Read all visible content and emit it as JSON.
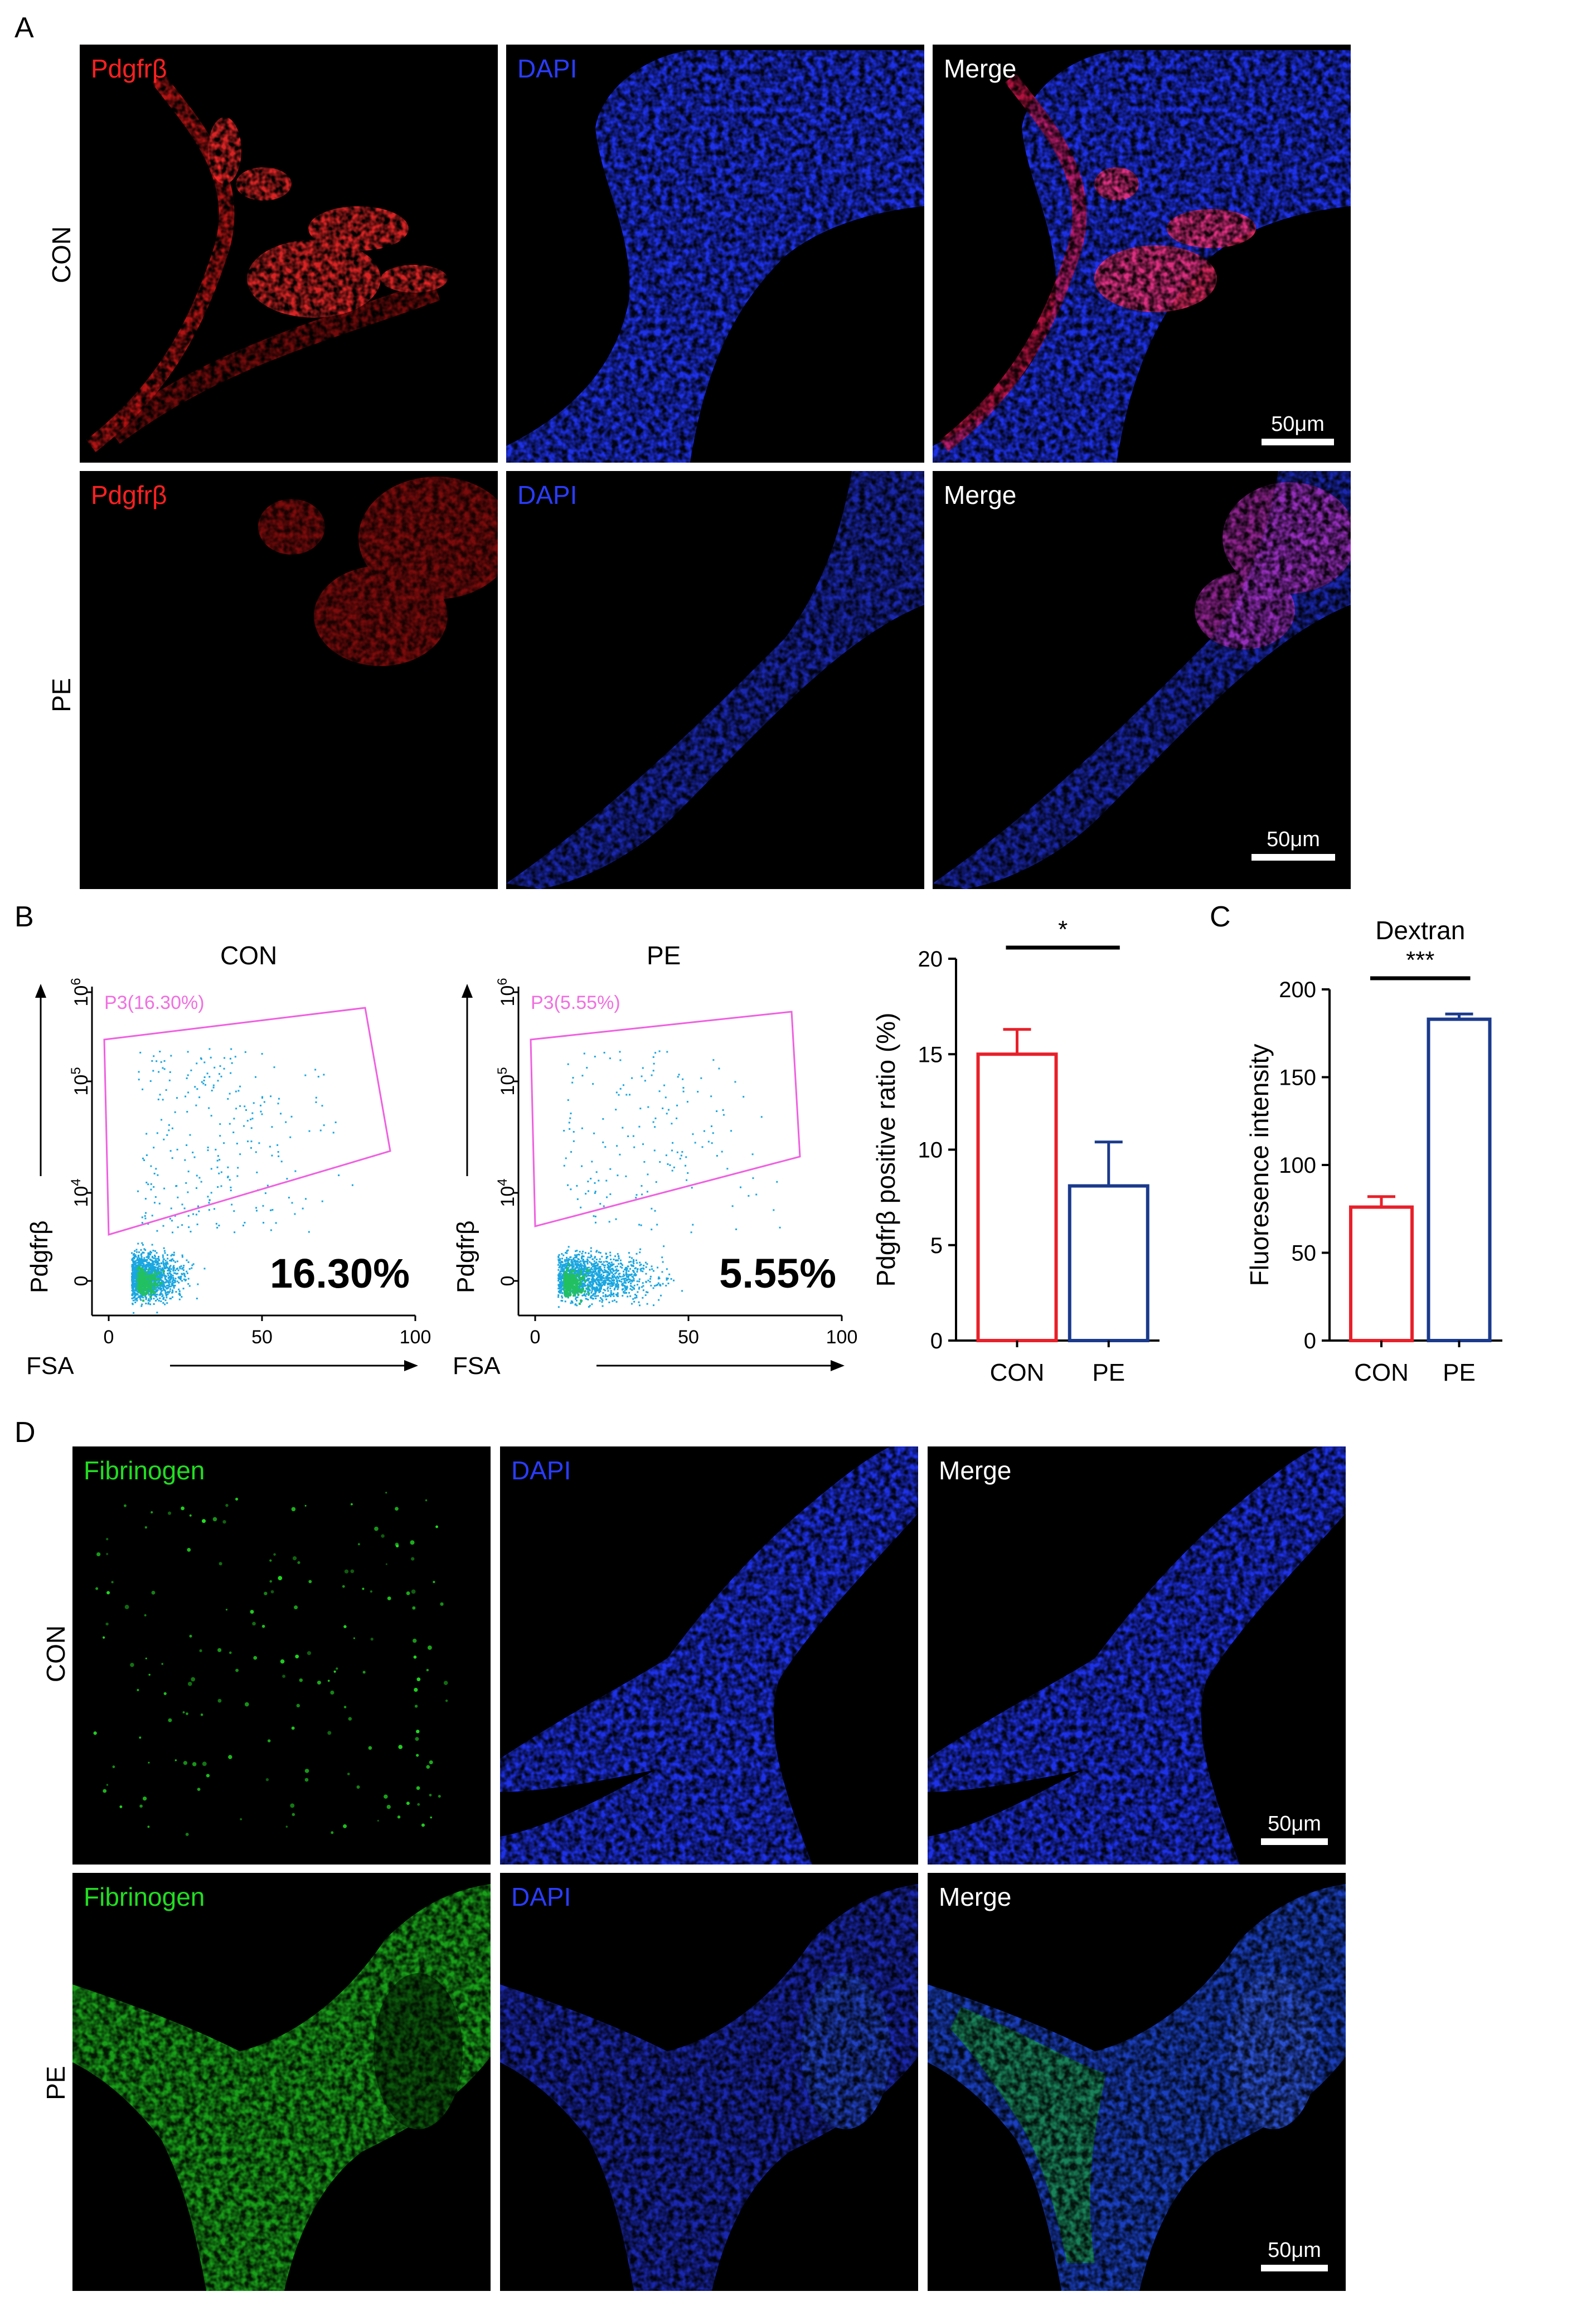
{
  "panels": {
    "a": {
      "letter": "A",
      "row1": "CON",
      "row2": "PE",
      "col1": "Pdgfrβ",
      "col2": "DAPI",
      "col3": "Merge",
      "scale": "50μm"
    },
    "b": {
      "letter": "B"
    },
    "c": {
      "letter": "C"
    },
    "d": {
      "letter": "D",
      "row1": "CON",
      "row2": "PE",
      "col1": "Fibrinogen",
      "col2": "DAPI",
      "col3": "Merge",
      "scale": "50μm"
    }
  },
  "colors": {
    "red": "#ff2020",
    "blue": "#2a3cff",
    "green": "#22dd22",
    "magenta": "#ff66ff",
    "bar_con": "#e8202a",
    "bar_pe": "#1a3a8c",
    "dots": "#1aa6e0"
  },
  "chart_data": [
    {
      "type": "scatter",
      "id": "flow-con",
      "title": "CON",
      "xlabel": "FSA",
      "ylabel": "Pdgfrβ",
      "xticks": [
        "0",
        "50",
        "100"
      ],
      "yticks": [
        "0",
        "10^4",
        "10^5",
        "10^6"
      ],
      "xlim": [
        0,
        100
      ],
      "gate_label": "P3(16.30%)",
      "percentage": "16.30%"
    },
    {
      "type": "scatter",
      "id": "flow-pe",
      "title": "PE",
      "xlabel": "FSA",
      "ylabel": "Pdgfrβ",
      "xticks": [
        "0",
        "50",
        "100"
      ],
      "yticks": [
        "0",
        "10^4",
        "10^5",
        "10^6"
      ],
      "xlim": [
        0,
        100
      ],
      "gate_label": "P3(5.55%)",
      "percentage": "5.55%"
    },
    {
      "type": "bar",
      "id": "pdgfrb-bar",
      "title": "",
      "categories": [
        "CON",
        "PE"
      ],
      "values": [
        15.0,
        8.1
      ],
      "errors": [
        1.3,
        2.3
      ],
      "ylabel": "Pdgfrβ positive ratio (%)",
      "ylim": [
        0,
        20
      ],
      "yticks": [
        0,
        5,
        10,
        15,
        20
      ],
      "significance": "*"
    },
    {
      "type": "bar",
      "id": "dextran-bar",
      "title": "Dextran",
      "categories": [
        "CON",
        "PE"
      ],
      "values": [
        76,
        183
      ],
      "errors": [
        6,
        3
      ],
      "ylabel": "Fluoresence intensity",
      "ylim": [
        0,
        200
      ],
      "yticks": [
        0,
        50,
        100,
        150,
        200
      ],
      "significance": "***"
    }
  ]
}
